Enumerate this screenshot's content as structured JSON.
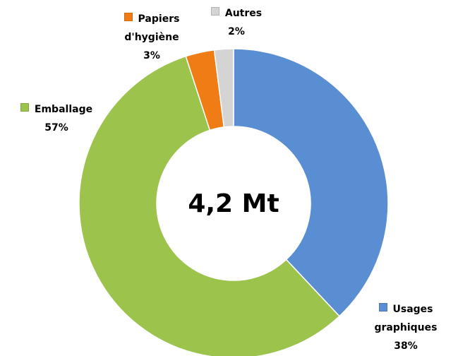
{
  "chart_data": {
    "type": "donut",
    "center_label": "4,2 Mt",
    "categories": [
      "Usages graphiques",
      "Emballage",
      "Papiers d'hygiène",
      "Autres"
    ],
    "values": [
      38,
      57,
      3,
      2
    ],
    "value_labels": [
      "38%",
      "57%",
      "3%",
      "2%"
    ],
    "colors": [
      "#5a8ed3",
      "#9cc34b",
      "#f07c15",
      "#d4d4d4"
    ]
  }
}
